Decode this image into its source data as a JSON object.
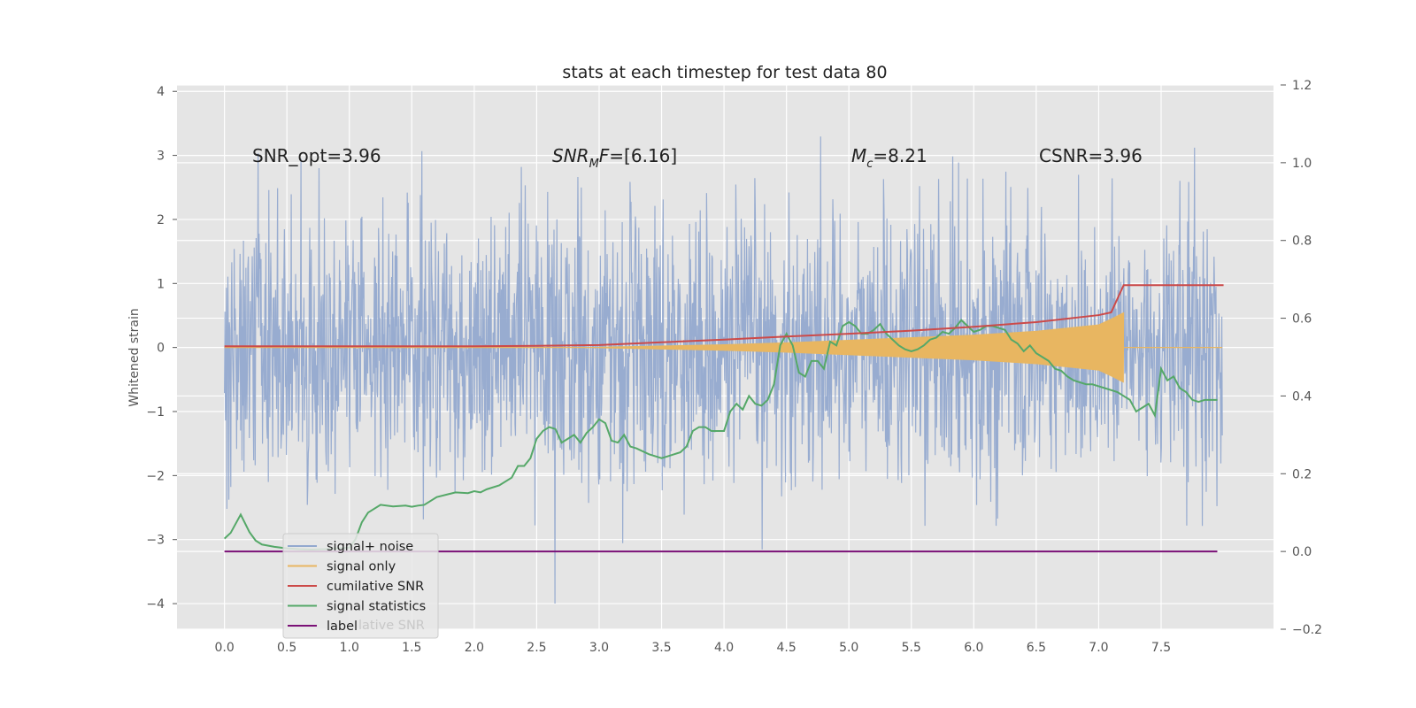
{
  "chart_data": {
    "type": "line",
    "title": "stats at each timestep for test data 80",
    "xlabel": "",
    "ylabel": "Whitened strain",
    "ylabel_right": "",
    "xlim": [
      -0.38,
      8.4
    ],
    "ylim": [
      -4.4,
      4.1
    ],
    "ylim_right": [
      -0.2,
      1.2
    ],
    "x_ticks": [
      0.0,
      0.5,
      1.0,
      1.5,
      2.0,
      2.5,
      3.0,
      3.5,
      4.0,
      4.5,
      5.0,
      5.5,
      6.0,
      6.5,
      7.0,
      7.5
    ],
    "x_tick_labels": [
      "0.0",
      "0.5",
      "1.0",
      "1.5",
      "2.0",
      "2.5",
      "3.0",
      "3.5",
      "4.0",
      "4.5",
      "5.0",
      "5.5",
      "6.0",
      "6.5",
      "7.0",
      "7.5"
    ],
    "y_ticks": [
      4,
      3,
      2,
      1,
      0,
      -1,
      -2,
      -3,
      -4
    ],
    "y_tick_labels": [
      "4",
      "3",
      "2",
      "1",
      "0",
      "−1",
      "−2",
      "−3",
      "−4"
    ],
    "y_right_ticks": [
      1.2,
      1.0,
      0.8,
      0.6,
      0.4,
      0.2,
      0.0,
      -0.2
    ],
    "y_right_tick_labels": [
      "1.2",
      "1.0",
      "0.8",
      "0.6",
      "0.4",
      "0.2",
      "0.0",
      "−0.2"
    ],
    "grid": true,
    "annotations": {
      "snr_opt": "SNR_opt=3.96",
      "snr_mf_main": "SNR",
      "snr_mf_sub": "M",
      "snr_mf_rest": "F=[6.16]",
      "mc_main": "M",
      "mc_sub": "c",
      "mc_rest": "=8.21",
      "csnr": "CSNR=3.96"
    },
    "noise_series": {
      "name": "signal+ noise",
      "axis": "left",
      "x_range": [
        0.0,
        7.99
      ],
      "sample_count": 2048,
      "typical_min": -2.0,
      "typical_max": 2.0,
      "extreme_min": -4.0,
      "extreme_max": 3.7,
      "color": "#93a9cf"
    },
    "signal_series": {
      "name": "signal only",
      "axis": "left",
      "chirp_x": [
        3.0,
        3.5,
        4.0,
        4.5,
        5.0,
        5.5,
        6.0,
        6.5,
        7.0,
        7.1,
        7.2
      ],
      "chirp_amplitude": [
        0.01,
        0.03,
        0.05,
        0.08,
        0.12,
        0.16,
        0.2,
        0.26,
        0.36,
        0.45,
        0.55
      ],
      "merger_x": 7.2,
      "color": "#e8b661"
    },
    "cumulative_snr": {
      "name": "cumilative SNR",
      "axis": "right",
      "x": [
        0.0,
        1.0,
        2.0,
        2.5,
        3.0,
        3.5,
        4.0,
        4.5,
        5.0,
        5.5,
        6.0,
        6.5,
        7.0,
        7.1,
        7.2,
        8.0
      ],
      "y": [
        0.528,
        0.528,
        0.528,
        0.529,
        0.531,
        0.538,
        0.545,
        0.553,
        0.56,
        0.568,
        0.578,
        0.59,
        0.608,
        0.615,
        0.685,
        0.685
      ],
      "color": "#cc4a49"
    },
    "signal_statistics": {
      "name": "signal statistics",
      "axis": "right",
      "x": [
        0.0,
        0.05,
        0.13,
        0.2,
        0.25,
        0.3,
        0.4,
        0.5,
        0.6,
        0.7,
        0.8,
        0.9,
        1.0,
        1.05,
        1.1,
        1.15,
        1.25,
        1.35,
        1.45,
        1.5,
        1.55,
        1.6,
        1.7,
        1.8,
        1.85,
        1.95,
        2.0,
        2.05,
        2.1,
        2.2,
        2.3,
        2.35,
        2.4,
        2.45,
        2.5,
        2.55,
        2.6,
        2.65,
        2.7,
        2.75,
        2.8,
        2.85,
        2.9,
        2.95,
        3.0,
        3.05,
        3.1,
        3.15,
        3.2,
        3.25,
        3.3,
        3.4,
        3.5,
        3.55,
        3.6,
        3.65,
        3.7,
        3.75,
        3.8,
        3.85,
        3.9,
        3.95,
        4.0,
        4.05,
        4.1,
        4.15,
        4.2,
        4.25,
        4.3,
        4.35,
        4.4,
        4.45,
        4.5,
        4.55,
        4.6,
        4.65,
        4.7,
        4.75,
        4.8,
        4.85,
        4.9,
        4.95,
        5.0,
        5.05,
        5.1,
        5.15,
        5.2,
        5.25,
        5.3,
        5.35,
        5.4,
        5.45,
        5.5,
        5.55,
        5.6,
        5.65,
        5.7,
        5.75,
        5.8,
        5.85,
        5.9,
        5.95,
        6.0,
        6.05,
        6.1,
        6.15,
        6.2,
        6.25,
        6.3,
        6.35,
        6.4,
        6.45,
        6.5,
        6.55,
        6.6,
        6.65,
        6.7,
        6.75,
        6.8,
        6.85,
        6.9,
        6.95,
        7.0,
        7.05,
        7.1,
        7.15,
        7.2,
        7.25,
        7.3,
        7.35,
        7.4,
        7.45,
        7.5,
        7.55,
        7.6,
        7.65,
        7.7,
        7.75,
        7.8,
        7.85,
        7.9,
        7.95
      ],
      "y": [
        0.033,
        0.048,
        0.095,
        0.05,
        0.028,
        0.018,
        0.012,
        0.008,
        0.006,
        0.005,
        0.006,
        0.008,
        0.01,
        0.032,
        0.075,
        0.1,
        0.12,
        0.116,
        0.118,
        0.115,
        0.118,
        0.12,
        0.14,
        0.148,
        0.152,
        0.15,
        0.155,
        0.152,
        0.16,
        0.17,
        0.19,
        0.22,
        0.22,
        0.24,
        0.29,
        0.31,
        0.32,
        0.315,
        0.28,
        0.29,
        0.3,
        0.28,
        0.305,
        0.32,
        0.34,
        0.33,
        0.285,
        0.28,
        0.3,
        0.27,
        0.265,
        0.25,
        0.24,
        0.245,
        0.25,
        0.255,
        0.27,
        0.31,
        0.32,
        0.32,
        0.31,
        0.31,
        0.31,
        0.36,
        0.38,
        0.365,
        0.4,
        0.38,
        0.375,
        0.39,
        0.43,
        0.53,
        0.56,
        0.53,
        0.46,
        0.45,
        0.49,
        0.49,
        0.47,
        0.54,
        0.53,
        0.58,
        0.59,
        0.58,
        0.56,
        0.56,
        0.57,
        0.585,
        0.56,
        0.545,
        0.53,
        0.52,
        0.515,
        0.52,
        0.53,
        0.545,
        0.55,
        0.565,
        0.56,
        0.575,
        0.595,
        0.58,
        0.565,
        0.57,
        0.58,
        0.58,
        0.575,
        0.57,
        0.545,
        0.535,
        0.515,
        0.53,
        0.51,
        0.5,
        0.49,
        0.47,
        0.465,
        0.45,
        0.44,
        0.435,
        0.43,
        0.43,
        0.425,
        0.42,
        0.415,
        0.41,
        0.4,
        0.39,
        0.36,
        0.37,
        0.38,
        0.35,
        0.47,
        0.44,
        0.45,
        0.42,
        0.41,
        0.39,
        0.385,
        0.39,
        0.39,
        0.39
      ],
      "color": "#55a868"
    },
    "label_series": {
      "name": "label",
      "axis": "right",
      "x": [
        0.0,
        7.95
      ],
      "y": [
        0.0,
        0.0
      ],
      "color": "#7b1177"
    },
    "legend": {
      "location": "lower-left",
      "entries": [
        "signal+ noise",
        "signal only",
        "cumilative SNR",
        "signal statistics",
        "label"
      ],
      "hidden_partial_text": "lative SNR"
    }
  }
}
